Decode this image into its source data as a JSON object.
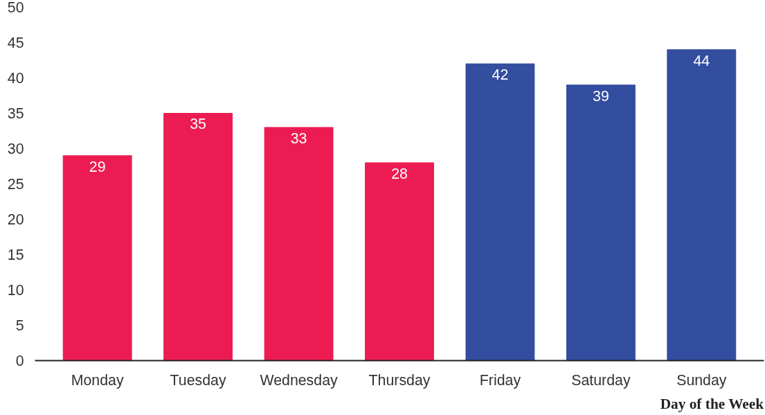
{
  "chart_data": {
    "type": "bar",
    "xlabel": "Day of the Week",
    "categories": [
      "Monday",
      "Tuesday",
      "Wednesday",
      "Thursday",
      "Friday",
      "Saturday",
      "Sunday"
    ],
    "values": [
      29,
      35,
      33,
      28,
      42,
      39,
      44
    ],
    "colors": [
      "#ec1c52",
      "#ec1c52",
      "#ec1c52",
      "#ec1c52",
      "#334d9f",
      "#334d9f",
      "#334d9f"
    ],
    "ylim": [
      0,
      50
    ],
    "yticks": [
      0,
      5,
      10,
      15,
      20,
      25,
      30,
      35,
      40,
      45,
      50
    ],
    "grid": false,
    "data_labels": true
  }
}
